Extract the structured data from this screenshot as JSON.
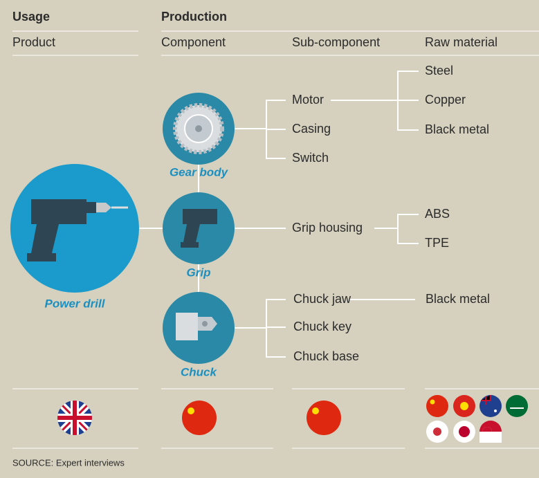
{
  "headers": {
    "usage": "Usage",
    "production": "Production"
  },
  "columns": [
    "Product",
    "Component",
    "Sub-component",
    "Raw material"
  ],
  "product": "Power drill",
  "components": [
    {
      "label": "Gear body",
      "subcomponents": [
        "Motor",
        "Casing",
        "Switch"
      ],
      "materials": [
        "Steel",
        "Copper",
        "Black metal"
      ]
    },
    {
      "label": "Grip",
      "subcomponents": [
        "Grip housing"
      ],
      "materials": [
        "ABS",
        "TPE"
      ]
    },
    {
      "label": "Chuck",
      "subcomponents": [
        "Chuck jaw",
        "Chuck key",
        "Chuck base"
      ],
      "materials": [
        "Black metal"
      ]
    }
  ],
  "source": "SOURCE: Expert interviews"
}
